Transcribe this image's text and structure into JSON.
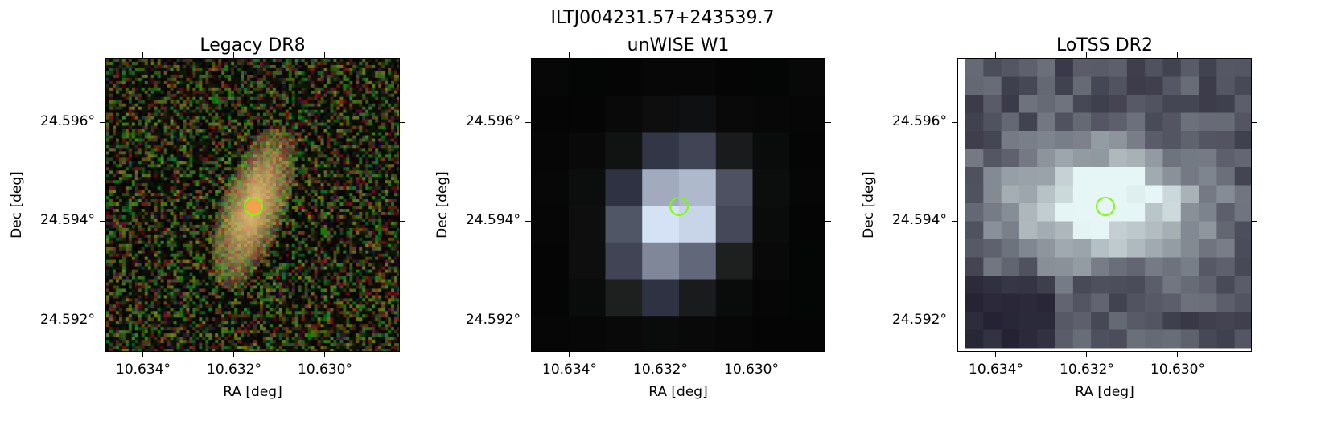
{
  "figure": {
    "title": "ILTJ004231.57+243539.7"
  },
  "panels": [
    {
      "title": "Legacy DR8",
      "xlabel": "RA [deg]",
      "ylabel": "Dec [deg]",
      "xticks": [
        "10.634°",
        "10.632°",
        "10.630°"
      ],
      "yticks": [
        "24.596°",
        "24.594°",
        "24.592°"
      ],
      "image": "optical-rgb-galaxy",
      "marker_color": "#7cfc00"
    },
    {
      "title": "unWISE W1",
      "xlabel": "RA [deg]",
      "ylabel": "Dec [deg]",
      "xticks": [
        "10.634°",
        "10.632°",
        "10.630°"
      ],
      "yticks": [
        "24.596°",
        "24.594°",
        "24.592°"
      ],
      "image": "infrared-pixelated",
      "marker_color": "#7cfc00"
    },
    {
      "title": "LoTSS DR2",
      "xlabel": "RA [deg]",
      "ylabel": "Dec [deg]",
      "xticks": [
        "10.634°",
        "10.632°",
        "10.630°"
      ],
      "yticks": [
        "24.596°",
        "24.594°",
        "24.592°"
      ],
      "image": "radio-pixelated",
      "marker_color": "#7cfc00"
    }
  ]
}
